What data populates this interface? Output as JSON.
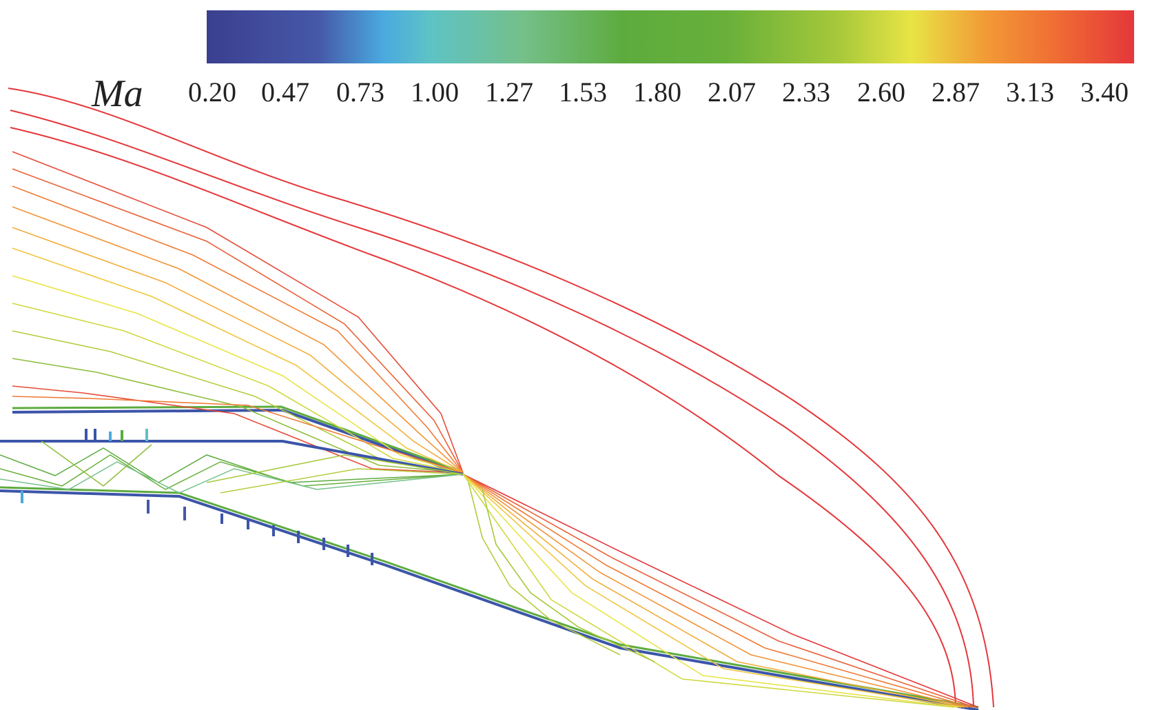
{
  "colorbar": {
    "label": "Ma",
    "ticks": [
      "0.20",
      "0.47",
      "0.73",
      "1.00",
      "1.27",
      "1.53",
      "1.80",
      "2.07",
      "2.33",
      "2.60",
      "2.87",
      "3.13",
      "3.40"
    ],
    "colors": [
      "#3b3f8f",
      "#4aa9df",
      "#74c08a",
      "#5dab3e",
      "#a6c83a",
      "#e8e445",
      "#f29a36",
      "#e5373a"
    ]
  }
}
